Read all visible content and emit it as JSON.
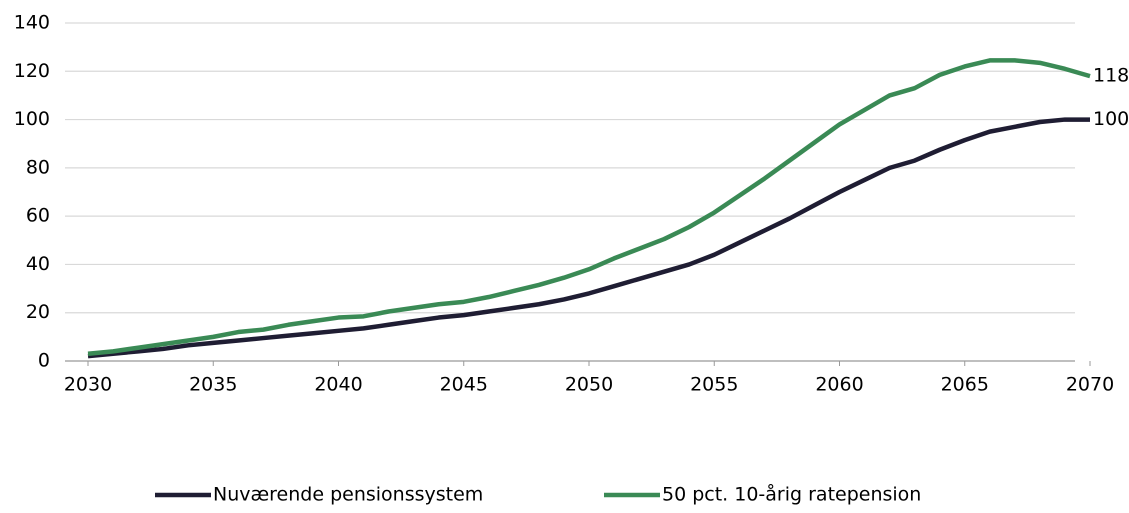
{
  "chart_data": {
    "type": "line",
    "x": [
      2030,
      2031,
      2032,
      2033,
      2034,
      2035,
      2036,
      2037,
      2038,
      2039,
      2040,
      2041,
      2042,
      2043,
      2044,
      2045,
      2046,
      2047,
      2048,
      2049,
      2050,
      2051,
      2052,
      2053,
      2054,
      2055,
      2056,
      2057,
      2058,
      2059,
      2060,
      2061,
      2062,
      2063,
      2064,
      2065,
      2066,
      2067,
      2068,
      2069,
      2070
    ],
    "series": [
      {
        "name": "Nuværende pensionssystem",
        "color": "#1f1d33",
        "values": [
          2,
          3,
          4,
          5,
          6.5,
          7.5,
          8.5,
          9.5,
          10.5,
          11.5,
          12.5,
          13.5,
          15,
          16.5,
          18,
          19,
          20.5,
          22,
          23.5,
          25.5,
          28,
          31,
          34,
          37,
          40,
          44,
          49,
          54,
          59,
          64.5,
          70,
          75,
          80,
          83,
          87.5,
          91.5,
          95,
          97,
          99,
          100,
          100
        ]
      },
      {
        "name": "50 pct. 10-årig ratepension",
        "color": "#3a8a55",
        "values": [
          3,
          4,
          5.5,
          7,
          8.5,
          10,
          12,
          13,
          15,
          16.5,
          18,
          18.5,
          20.5,
          22,
          23.5,
          24.5,
          26.5,
          29,
          31.5,
          34.5,
          38,
          42.5,
          46.5,
          50.5,
          55.5,
          61.5,
          68.5,
          75.5,
          83,
          90.5,
          98,
          104,
          110,
          113,
          118.5,
          122,
          124.5,
          124.5,
          123.5,
          121,
          118
        ]
      }
    ],
    "xlim": [
      2030,
      2070
    ],
    "xticks": [
      2030,
      2035,
      2040,
      2045,
      2050,
      2055,
      2060,
      2065,
      2070
    ],
    "ylim": [
      0,
      140
    ],
    "yticks": [
      0,
      20,
      40,
      60,
      80,
      100,
      120,
      140
    ],
    "grid": true,
    "legend": "bottom"
  }
}
